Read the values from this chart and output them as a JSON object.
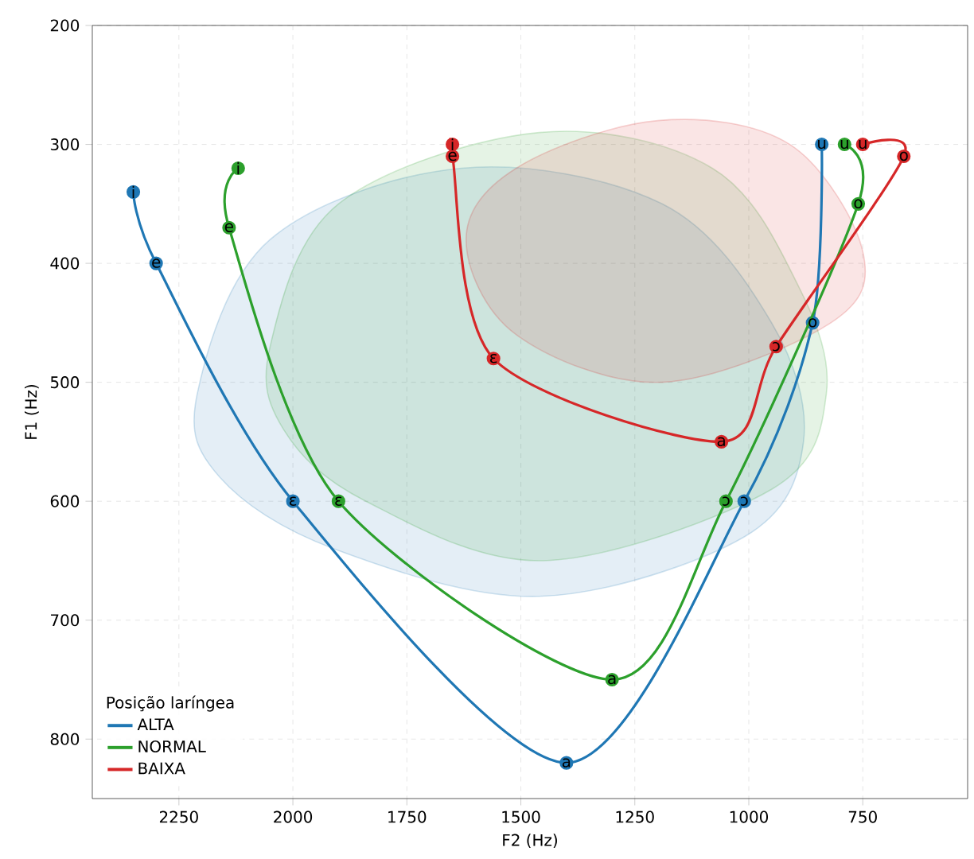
{
  "chart_data": {
    "type": "line",
    "xlabel": "F2 (Hz)",
    "ylabel": "F1 (Hz)",
    "legend_title": "Posição laríngea",
    "xlim": [
      2440,
      520
    ],
    "ylim": [
      850,
      200
    ],
    "xticks": [
      2250,
      2000,
      1750,
      1500,
      1250,
      1000,
      750
    ],
    "yticks": [
      200,
      300,
      400,
      500,
      600,
      700,
      800
    ],
    "grid": true,
    "legend": "bottom left",
    "series": [
      {
        "type": "area",
        "color": "#1f77b4",
        "x": [
          2210,
          2050,
          1630,
          1190,
          950,
          880,
          1010,
          1460,
          1910,
          2160
        ],
        "values": [
          510,
          380,
          320,
          350,
          450,
          550,
          630,
          680,
          640,
          580
        ]
      },
      {
        "type": "area",
        "color": "#2ca02c",
        "x": [
          2050,
          1900,
          1460,
          1080,
          890,
          830,
          950,
          1450,
          1840,
          2020
        ],
        "values": [
          470,
          350,
          290,
          320,
          420,
          510,
          590,
          650,
          600,
          540
        ]
      },
      {
        "type": "area",
        "color": "#d62728",
        "x": [
          1620,
          1510,
          1200,
          910,
          750,
          820,
          1190,
          1510
        ],
        "values": [
          380,
          320,
          280,
          300,
          390,
          450,
          500,
          460
        ]
      },
      {
        "name": "ALTA",
        "marker": "circle",
        "color": "#1f77b4",
        "x": [
          2350,
          2300,
          2000,
          1400,
          1010,
          860,
          840
        ],
        "values": [
          340,
          400,
          600,
          820,
          600,
          450,
          300
        ]
      },
      {
        "name": "NORMAL",
        "marker": "circle",
        "color": "#2ca02c",
        "x": [
          2120,
          2140,
          1900,
          1300,
          1050,
          760,
          790
        ],
        "values": [
          320,
          370,
          600,
          750,
          600,
          350,
          300
        ]
      },
      {
        "name": "BAIXA",
        "marker": "circle",
        "color": "#d62728",
        "x": [
          1650,
          1650,
          1560,
          1060,
          940,
          660,
          750
        ],
        "values": [
          300,
          310,
          480,
          550,
          470,
          310,
          300
        ]
      }
    ],
    "annotations": [
      {
        "text": "i",
        "x": 2350,
        "y": 340
      },
      {
        "text": "e",
        "x": 2300,
        "y": 400
      },
      {
        "text": "ɛ",
        "x": 2000,
        "y": 600
      },
      {
        "text": "a",
        "x": 1400,
        "y": 820
      },
      {
        "text": "ɔ",
        "x": 1010,
        "y": 600
      },
      {
        "text": "o",
        "x": 860,
        "y": 450
      },
      {
        "text": "u",
        "x": 840,
        "y": 300
      },
      {
        "text": "i",
        "x": 2120,
        "y": 320
      },
      {
        "text": "e",
        "x": 2140,
        "y": 370
      },
      {
        "text": "ɛ",
        "x": 1900,
        "y": 600
      },
      {
        "text": "a",
        "x": 1300,
        "y": 750
      },
      {
        "text": "ɔ",
        "x": 1050,
        "y": 600
      },
      {
        "text": "o",
        "x": 760,
        "y": 350
      },
      {
        "text": "u",
        "x": 790,
        "y": 300
      },
      {
        "text": "i",
        "x": 1650,
        "y": 300
      },
      {
        "text": "e",
        "x": 1650,
        "y": 310
      },
      {
        "text": "ɛ",
        "x": 1560,
        "y": 480
      },
      {
        "text": "a",
        "x": 1060,
        "y": 550
      },
      {
        "text": "ɔ",
        "x": 940,
        "y": 470
      },
      {
        "text": "o",
        "x": 660,
        "y": 310
      },
      {
        "text": "u",
        "x": 750,
        "y": 300
      }
    ]
  }
}
